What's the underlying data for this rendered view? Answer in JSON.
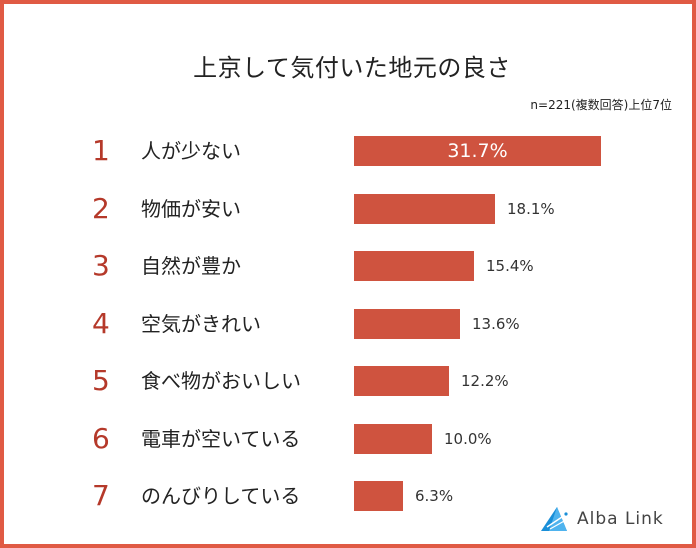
{
  "title": "上京して気付いた地元の良さ",
  "note": "n=221(複数回答)上位7位",
  "logo": {
    "text": "Alba Link",
    "icon": "alba-link-logo-icon"
  },
  "colors": {
    "border": "#e05a44",
    "bar": "#cf533f",
    "rank": "#b5392a",
    "logo": "#1a8fd8"
  },
  "rows": [
    {
      "rank": "1",
      "label": "人が少ない",
      "value": "31.7%"
    },
    {
      "rank": "2",
      "label": "物価が安い",
      "value": "18.1%"
    },
    {
      "rank": "3",
      "label": "自然が豊か",
      "value": "15.4%"
    },
    {
      "rank": "4",
      "label": "空気がきれい",
      "value": "13.6%"
    },
    {
      "rank": "5",
      "label": "食べ物がおいしい",
      "value": "12.2%"
    },
    {
      "rank": "6",
      "label": "電車が空いている",
      "value": "10.0%"
    },
    {
      "rank": "7",
      "label": "のんびりしている",
      "value": "6.3%"
    }
  ],
  "chart_data": {
    "type": "bar",
    "orientation": "horizontal",
    "title": "上京して気付いた地元の良さ",
    "subtitle": "n=221(複数回答)上位7位",
    "categories": [
      "人が少ない",
      "物価が安い",
      "自然が豊か",
      "空気がきれい",
      "食べ物がおいしい",
      "電車が空いている",
      "のんびりしている"
    ],
    "values": [
      31.7,
      18.1,
      15.4,
      13.6,
      12.2,
      10.0,
      6.3
    ],
    "unit": "%",
    "xlabel": "",
    "ylabel": "",
    "grid": false,
    "legend": null
  }
}
